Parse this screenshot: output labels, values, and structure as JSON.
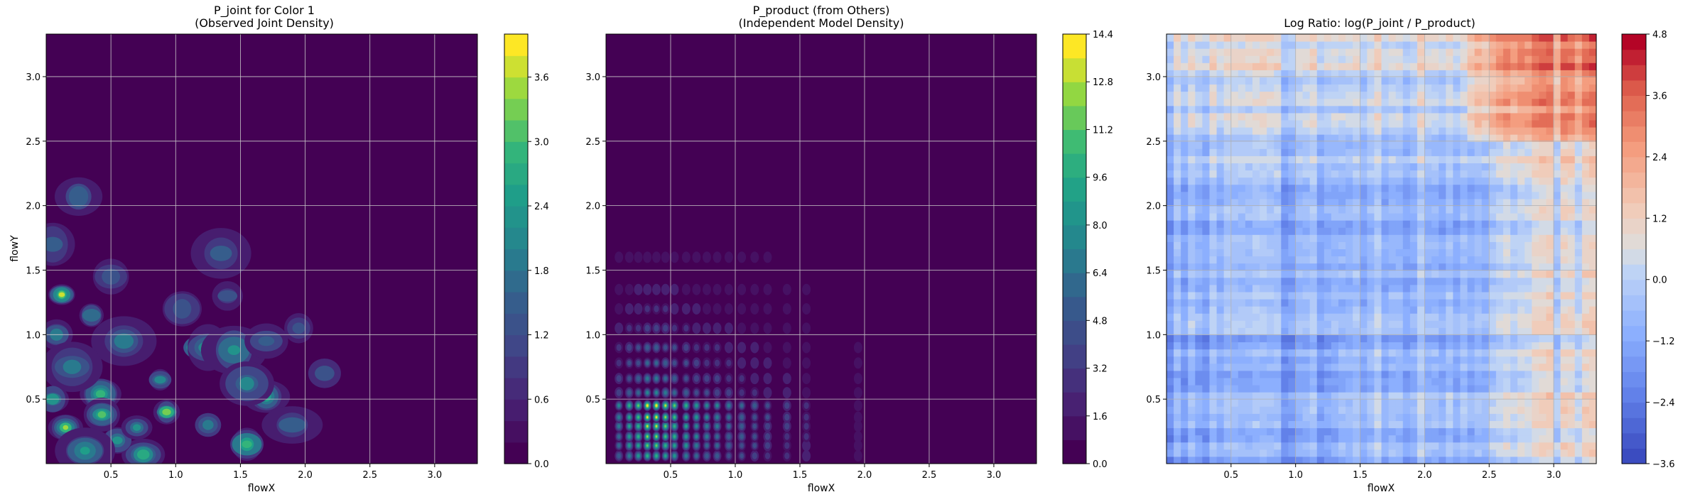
{
  "chart_data": [
    {
      "type": "heatmap",
      "title_lines": [
        "P_joint for Color 1",
        "(Observed Joint Density)"
      ],
      "xlabel": "flowX",
      "ylabel": "flowY",
      "xlim": [
        0.0,
        3.33
      ],
      "ylim": [
        0.0,
        3.33
      ],
      "x_ticks": [
        0.5,
        1.0,
        1.5,
        2.0,
        2.5,
        3.0
      ],
      "x_tick_labels": [
        "0.5",
        "1.0",
        "1.5",
        "2.0",
        "2.5",
        "3.0"
      ],
      "y_ticks": [
        0.5,
        1.0,
        1.5,
        2.0,
        2.5,
        3.0
      ],
      "y_tick_labels": [
        "0.5",
        "1.0",
        "1.5",
        "2.0",
        "2.5",
        "3.0"
      ],
      "grid": true,
      "colormap": "viridis",
      "colorbar": {
        "min": 0.0,
        "max": 4.0,
        "levels": 20,
        "ticks": [
          0.0,
          0.6,
          1.2,
          1.8,
          2.4,
          3.0,
          3.6
        ],
        "tick_labels": [
          "0.0",
          "0.6",
          "1.2",
          "1.8",
          "2.4",
          "3.0",
          "3.6"
        ]
      }
    },
    {
      "type": "heatmap",
      "title_lines": [
        "P_product (from Others)",
        "(Independent Model Density)"
      ],
      "xlabel": "flowX",
      "ylabel": "",
      "xlim": [
        0.0,
        3.33
      ],
      "ylim": [
        0.0,
        3.33
      ],
      "x_ticks": [
        0.5,
        1.0,
        1.5,
        2.0,
        2.5,
        3.0
      ],
      "x_tick_labels": [
        "0.5",
        "1.0",
        "1.5",
        "2.0",
        "2.5",
        "3.0"
      ],
      "y_ticks": [
        0.5,
        1.0,
        1.5,
        2.0,
        2.5,
        3.0
      ],
      "y_tick_labels": [
        "0.5",
        "1.0",
        "1.5",
        "2.0",
        "2.5",
        "3.0"
      ],
      "grid": true,
      "colormap": "viridis",
      "colorbar": {
        "min": 0.0,
        "max": 14.4,
        "levels": 18,
        "ticks": [
          0.0,
          1.6,
          3.2,
          4.8,
          6.4,
          8.0,
          9.6,
          11.2,
          12.8,
          14.4
        ],
        "tick_labels": [
          "0.0",
          "1.6",
          "3.2",
          "4.8",
          "6.4",
          "8.0",
          "9.6",
          "11.2",
          "12.8",
          "14.4"
        ]
      }
    },
    {
      "type": "heatmap",
      "title_lines": [
        "Log Ratio: log(P_joint / P_product)"
      ],
      "xlabel": "flowX",
      "ylabel": "",
      "xlim": [
        0.0,
        3.33
      ],
      "ylim": [
        0.0,
        3.33
      ],
      "x_ticks": [
        0.5,
        1.0,
        1.5,
        2.0,
        2.5,
        3.0
      ],
      "x_tick_labels": [
        "0.5",
        "1.0",
        "1.5",
        "2.0",
        "2.5",
        "3.0"
      ],
      "y_ticks": [
        0.5,
        1.0,
        1.5,
        2.0,
        2.5,
        3.0
      ],
      "y_tick_labels": [
        "0.5",
        "1.0",
        "1.5",
        "2.0",
        "2.5",
        "3.0"
      ],
      "grid": true,
      "colormap": "coolwarm",
      "colorbar": {
        "min": -3.6,
        "max": 4.8,
        "levels": 28,
        "ticks": [
          -3.6,
          -2.4,
          -1.2,
          0.0,
          1.2,
          2.4,
          3.6,
          4.8
        ],
        "tick_labels": [
          "−3.6",
          "−2.4",
          "−1.2",
          "0.0",
          "1.2",
          "2.4",
          "3.6",
          "4.8"
        ]
      }
    }
  ]
}
